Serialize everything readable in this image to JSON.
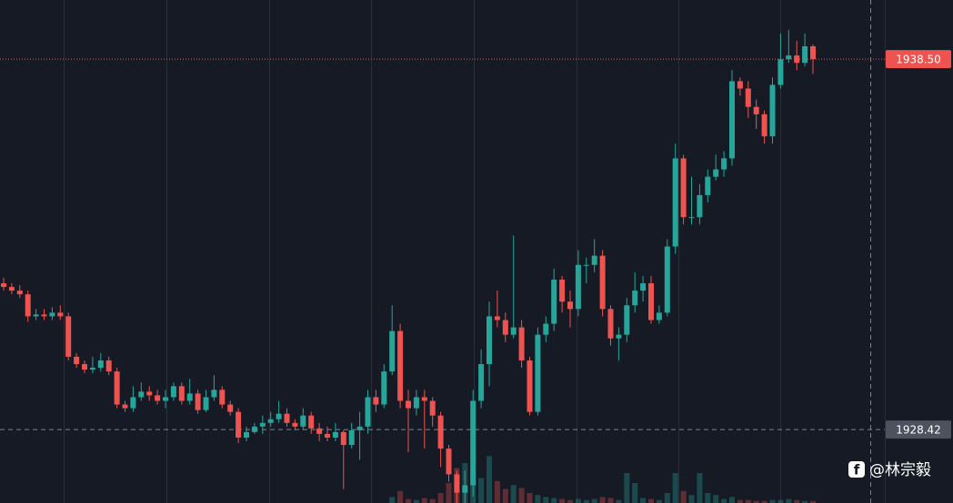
{
  "chart_data": {
    "type": "candlestick",
    "open": [
      1932.4,
      1932.3,
      1932.2,
      1932.1,
      1931.5,
      1931.55,
      1931.5,
      1931.6,
      1931.5,
      1930.4,
      1930.2,
      1930.05,
      1930.1,
      1930.3,
      1930.0,
      1929.1,
      1929.0,
      1929.3,
      1929.45,
      1929.35,
      1929.2,
      1929.3,
      1929.6,
      1929.2,
      1929.4,
      1928.95,
      1929.3,
      1929.5,
      1929.1,
      1928.9,
      1928.2,
      1928.35,
      1928.5,
      1928.6,
      1928.7,
      1928.85,
      1928.6,
      1928.5,
      1928.8,
      1928.45,
      1928.3,
      1928.2,
      1928.35,
      1928.0,
      1928.4,
      1928.5,
      1929.3,
      1929.1,
      1930.0,
      1931.1,
      1929.2,
      1929.0,
      1929.3,
      1929.2,
      1928.8,
      1927.9,
      1927.2,
      1926.7,
      1926.9,
      1929.2,
      1930.2,
      1931.5,
      1931.4,
      1931.0,
      1931.2,
      1930.3,
      1928.9,
      1931.0,
      1931.3,
      1932.5,
      1931.9,
      1931.7,
      1932.9,
      1932.9,
      1933.15,
      1931.7,
      1930.9,
      1931.0,
      1931.8,
      1932.2,
      1932.4,
      1931.4,
      1931.6,
      1933.4,
      1935.8,
      1934.2,
      1934.2,
      1934.8,
      1935.3,
      1935.5,
      1935.8,
      1937.9,
      1937.7,
      1937.2,
      1937.0,
      1936.4,
      1937.8,
      1938.5,
      1938.6,
      1938.4,
      1938.85
    ],
    "high": [
      1932.55,
      1932.4,
      1932.35,
      1932.2,
      1931.7,
      1931.7,
      1931.75,
      1931.8,
      1931.6,
      1930.5,
      1930.3,
      1930.4,
      1930.5,
      1930.4,
      1930.1,
      1929.2,
      1929.6,
      1929.7,
      1929.6,
      1929.5,
      1929.5,
      1929.7,
      1929.7,
      1929.8,
      1929.5,
      1929.5,
      1929.9,
      1929.6,
      1929.2,
      1929.0,
      1928.5,
      1928.6,
      1928.8,
      1928.9,
      1929.2,
      1929.0,
      1928.7,
      1929.0,
      1928.9,
      1928.6,
      1928.5,
      1928.6,
      1928.4,
      1928.6,
      1928.9,
      1929.5,
      1929.5,
      1930.2,
      1931.8,
      1931.3,
      1929.5,
      1929.5,
      1929.5,
      1929.3,
      1928.9,
      1928.0,
      1927.3,
      1927.3,
      1929.5,
      1930.6,
      1931.9,
      1932.2,
      1931.6,
      1933.7,
      1931.4,
      1930.4,
      1931.2,
      1931.5,
      1932.8,
      1932.6,
      1932.2,
      1933.3,
      1933.1,
      1933.6,
      1933.3,
      1931.8,
      1931.2,
      1932.0,
      1932.7,
      1932.6,
      1932.6,
      1931.8,
      1933.6,
      1936.2,
      1935.9,
      1935.3,
      1935.1,
      1935.5,
      1935.9,
      1936.0,
      1938.2,
      1938.0,
      1937.9,
      1937.4,
      1937.1,
      1938.0,
      1939.2,
      1939.3,
      1939.0,
      1939.2,
      1938.9
    ],
    "low": [
      1932.2,
      1932.1,
      1932.0,
      1931.35,
      1931.4,
      1931.4,
      1931.4,
      1931.4,
      1930.3,
      1930.1,
      1929.95,
      1929.95,
      1930.0,
      1929.9,
      1929.0,
      1928.9,
      1928.9,
      1929.2,
      1929.2,
      1929.1,
      1929.0,
      1929.2,
      1929.1,
      1929.1,
      1928.85,
      1928.9,
      1929.2,
      1929.0,
      1928.8,
      1928.05,
      1928.1,
      1928.3,
      1928.3,
      1928.5,
      1928.6,
      1928.5,
      1928.4,
      1928.4,
      1928.3,
      1928.1,
      1928.1,
      1928.1,
      1926.8,
      1927.9,
      1927.6,
      1928.3,
      1928.9,
      1929.0,
      1929.9,
      1929.0,
      1927.8,
      1928.8,
      1927.9,
      1928.5,
      1927.4,
      1927.0,
      1926.42,
      1926.42,
      1926.6,
      1929.0,
      1929.6,
      1931.2,
      1930.8,
      1930.9,
      1930.1,
      1928.8,
      1928.8,
      1930.8,
      1931.1,
      1931.6,
      1931.2,
      1931.5,
      1932.4,
      1932.7,
      1931.5,
      1930.7,
      1930.3,
      1930.8,
      1931.6,
      1931.9,
      1931.3,
      1931.3,
      1931.5,
      1933.2,
      1934.0,
      1934.0,
      1934.0,
      1934.6,
      1935.2,
      1935.3,
      1935.6,
      1937.5,
      1936.9,
      1936.6,
      1936.2,
      1936.2,
      1937.7,
      1938.4,
      1938.2,
      1938.3,
      1938.1
    ],
    "close": [
      1932.3,
      1932.2,
      1932.1,
      1931.5,
      1931.55,
      1931.5,
      1931.6,
      1931.5,
      1930.4,
      1930.2,
      1930.05,
      1930.1,
      1930.3,
      1930.0,
      1929.1,
      1929.0,
      1929.3,
      1929.45,
      1929.35,
      1929.2,
      1929.3,
      1929.6,
      1929.2,
      1929.4,
      1928.95,
      1929.3,
      1929.5,
      1929.1,
      1928.9,
      1928.2,
      1928.35,
      1928.5,
      1928.6,
      1928.7,
      1928.85,
      1928.6,
      1928.5,
      1928.8,
      1928.45,
      1928.3,
      1928.2,
      1928.35,
      1928.0,
      1928.4,
      1928.5,
      1929.3,
      1929.1,
      1930.0,
      1931.1,
      1929.2,
      1929.0,
      1929.3,
      1929.2,
      1928.8,
      1927.9,
      1927.2,
      1926.7,
      1926.9,
      1929.2,
      1930.2,
      1931.5,
      1931.4,
      1931.0,
      1931.2,
      1930.3,
      1928.9,
      1931.0,
      1931.3,
      1932.5,
      1931.9,
      1931.7,
      1932.9,
      1932.9,
      1933.15,
      1931.7,
      1930.9,
      1931.0,
      1931.8,
      1932.2,
      1932.4,
      1931.4,
      1931.6,
      1933.4,
      1935.8,
      1934.2,
      1934.2,
      1934.8,
      1935.3,
      1935.5,
      1935.8,
      1937.9,
      1937.7,
      1937.2,
      1937.0,
      1936.4,
      1937.8,
      1938.5,
      1938.6,
      1938.4,
      1938.85,
      1938.5
    ],
    "volume": [
      0,
      0,
      0,
      0,
      0,
      0,
      0,
      0,
      0,
      0,
      0,
      0,
      0,
      0,
      0,
      0,
      0,
      0,
      0,
      0,
      0,
      0,
      0,
      0,
      0,
      0,
      0,
      0,
      0,
      0,
      0,
      0,
      0,
      0,
      0,
      0,
      0,
      0,
      0,
      0,
      0,
      0,
      0,
      0,
      0,
      0,
      0,
      0,
      6,
      12,
      4,
      3,
      5,
      4,
      10,
      20,
      35,
      40,
      30,
      25,
      47,
      22,
      14,
      18,
      15,
      10,
      8,
      6,
      5,
      4,
      3,
      4,
      3,
      4,
      6,
      5,
      3,
      30,
      20,
      5,
      4,
      3,
      10,
      30,
      12,
      8,
      30,
      10,
      8,
      4,
      6,
      3,
      3,
      2,
      2,
      3,
      3,
      4,
      3,
      2,
      2
    ],
    "volume_ylim": [
      0,
      100
    ],
    "ylim": [
      1926.42,
      1940.11
    ],
    "up_color": "#26a69a",
    "down_color": "#ef5350",
    "last_price": {
      "value": 1938.5,
      "label": "1938.50"
    },
    "crosshair_price": 1928.42,
    "watermark": "@林宗毅"
  }
}
